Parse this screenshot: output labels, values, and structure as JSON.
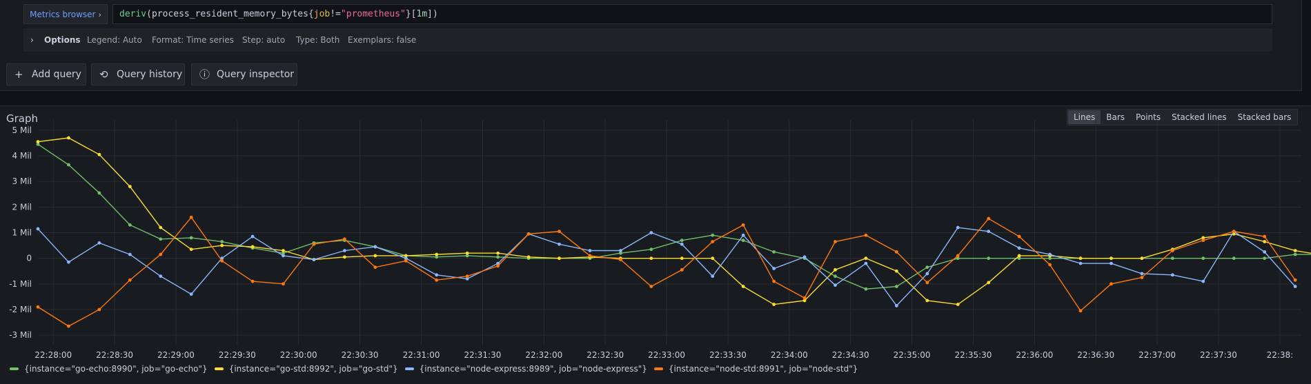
{
  "query_editor": {
    "metrics_browser_label": "Metrics browser",
    "query_tokens": [
      {
        "text": "deriv",
        "cls": "tk-fn"
      },
      {
        "text": "(process_resident_memory_bytes{",
        "cls": ""
      },
      {
        "text": "job",
        "cls": "tk-lbl"
      },
      {
        "text": "!=",
        "cls": ""
      },
      {
        "text": "\"prometheus\"",
        "cls": "tk-str"
      },
      {
        "text": "}[",
        "cls": ""
      },
      {
        "text": "1m",
        "cls": "tk-num"
      },
      {
        "text": "])",
        "cls": ""
      }
    ],
    "options": {
      "title": "Options",
      "items": [
        "Legend: Auto",
        "Format: Time series",
        "Step: auto",
        "Type: Both",
        "Exemplars: false"
      ]
    }
  },
  "toolbar": {
    "add_query": "Add query",
    "query_history": "Query history",
    "query_inspector": "Query inspector"
  },
  "graph": {
    "title": "Graph",
    "view_options": [
      "Lines",
      "Bars",
      "Points",
      "Stacked lines",
      "Stacked bars"
    ],
    "active_view": "Lines"
  },
  "chart_data": {
    "type": "line",
    "ylim": [
      -3.4,
      5.4
    ],
    "y_ticks": [
      5,
      4,
      3,
      2,
      1,
      0,
      -1,
      -2,
      -3
    ],
    "y_tick_labels": [
      "5 Mil",
      "4 Mil",
      "3 Mil",
      "2 Mil",
      "1 Mil",
      "0",
      "-1 Mil",
      "-2 Mil",
      "-3 Mil"
    ],
    "x_ticks": [
      0.5,
      2.5,
      4.5,
      6.5,
      8.5,
      10.5,
      12.5,
      14.5,
      16.5,
      18.5,
      20.5,
      22.5,
      24.5,
      26.5,
      28.5,
      30.5,
      32.5,
      34.5,
      36.5,
      38.5,
      40.5
    ],
    "x_tick_labels": [
      "22:28:00",
      "22:28:30",
      "22:29:00",
      "22:29:30",
      "22:30:00",
      "22:30:30",
      "22:31:00",
      "22:31:30",
      "22:32:00",
      "22:32:30",
      "22:33:00",
      "22:33:30",
      "22:34:00",
      "22:34:30",
      "22:35:00",
      "22:35:30",
      "22:36:00",
      "22:36:30",
      "22:37:00",
      "22:37:30",
      "22:38:"
    ],
    "grid": true,
    "legend_position": "bottom",
    "series": [
      {
        "name": "{instance=\"go-echo:8990\", job=\"go-echo\"}",
        "color": "#73bf69",
        "values": [
          4.45,
          3.65,
          2.55,
          1.3,
          0.75,
          0.8,
          0.65,
          0.4,
          0.2,
          0.6,
          0.7,
          0.45,
          0.1,
          0.05,
          0.1,
          0.05,
          0.0,
          0.0,
          0.0,
          0.2,
          0.35,
          0.7,
          0.9,
          0.7,
          0.25,
          0.0,
          -0.7,
          -1.2,
          -1.1,
          -0.35,
          0.0,
          0.0,
          0.0,
          0.0,
          0.0,
          0.0,
          0.0,
          0.0,
          0.0,
          0.0,
          0.0,
          0.15,
          0.15
        ]
      },
      {
        "name": "{instance=\"go-std:8992\", job=\"go-std\"}",
        "color": "#fade2a",
        "values": [
          4.55,
          4.7,
          4.05,
          2.8,
          1.2,
          0.35,
          0.5,
          0.45,
          0.3,
          -0.05,
          0.05,
          0.1,
          0.1,
          0.15,
          0.2,
          0.2,
          0.05,
          0.0,
          0.05,
          0.0,
          0.0,
          0.0,
          0.0,
          -1.1,
          -1.8,
          -1.65,
          -0.45,
          0.0,
          -0.5,
          -1.65,
          -1.8,
          -0.95,
          0.1,
          0.1,
          0.0,
          0.0,
          0.0,
          0.35,
          0.8,
          0.95,
          0.65,
          0.3,
          0.1,
          0.2
        ]
      },
      {
        "name": "{instance=\"node-express:8989\", job=\"node-express\"}",
        "color": "#8ab8ff",
        "values": [
          1.15,
          -0.15,
          0.6,
          0.15,
          -0.7,
          -1.4,
          0.0,
          0.85,
          0.1,
          -0.05,
          0.3,
          0.45,
          0.0,
          -0.65,
          -0.8,
          -0.2,
          0.95,
          0.55,
          0.3,
          0.3,
          1.0,
          0.55,
          -0.7,
          0.9,
          -0.4,
          0.05,
          -1.05,
          -0.2,
          -1.85,
          -0.6,
          1.2,
          1.05,
          0.4,
          0.15,
          -0.2,
          -0.2,
          -0.6,
          -0.65,
          -0.9,
          1.05,
          0.25,
          -1.1
        ]
      },
      {
        "name": "{instance=\"node-std:8991\", job=\"node-std\"}",
        "color": "#ff780a",
        "values": [
          -1.9,
          -2.65,
          -2.0,
          -0.85,
          0.15,
          1.6,
          -0.1,
          -0.9,
          -1.0,
          0.55,
          0.75,
          -0.35,
          -0.1,
          -0.85,
          -0.7,
          -0.3,
          0.95,
          1.05,
          0.1,
          -0.05,
          -1.1,
          -0.45,
          0.65,
          1.3,
          -0.9,
          -1.55,
          0.65,
          0.9,
          0.25,
          -0.95,
          0.1,
          1.55,
          0.85,
          -0.25,
          -2.05,
          -1.0,
          -0.75,
          0.3,
          0.7,
          1.05,
          0.85,
          -0.85
        ]
      }
    ]
  }
}
